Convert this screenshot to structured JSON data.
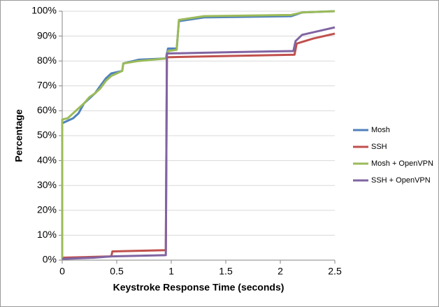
{
  "chart_data": {
    "type": "line",
    "x_label": "Keystroke Response Time (seconds)",
    "y_label": "Percentage",
    "xlim": [
      0,
      2.5
    ],
    "xticks": [
      0,
      0.5,
      1,
      1.5,
      2,
      2.5
    ],
    "ylim": [
      0,
      100
    ],
    "yticks": [
      {
        "value": 0,
        "label": "0%"
      },
      {
        "value": 10,
        "label": "10%"
      },
      {
        "value": 20,
        "label": "20%"
      },
      {
        "value": 30,
        "label": "30%"
      },
      {
        "value": 40,
        "label": "40%"
      },
      {
        "value": 50,
        "label": "50%"
      },
      {
        "value": 60,
        "label": "60%"
      },
      {
        "value": 70,
        "label": "70%"
      },
      {
        "value": 80,
        "label": "80%"
      },
      {
        "value": 90,
        "label": "90%"
      },
      {
        "value": 100,
        "label": "100%"
      }
    ],
    "grid": true,
    "legend": "right",
    "series": [
      {
        "name": "Mosh",
        "color": "#4f81bd",
        "x": [
          0,
          0,
          0.05,
          0.1,
          0.15,
          0.2,
          0.25,
          0.3,
          0.35,
          0.4,
          0.45,
          0.5,
          0.55,
          0.56,
          0.7,
          0.95,
          0.97,
          1.05,
          1.07,
          1.3,
          2.1,
          2.2,
          2.5
        ],
        "values": [
          0,
          55,
          56,
          57,
          59,
          63,
          65,
          67,
          70,
          73,
          75,
          75.5,
          76,
          79,
          80.5,
          81,
          85,
          85,
          96,
          97.5,
          98,
          99.5,
          100
        ]
      },
      {
        "name": "SSH",
        "color": "#c0504d",
        "x": [
          0,
          0.45,
          0.46,
          0.95,
          0.96,
          1.5,
          2.13,
          2.15,
          2.3,
          2.5
        ],
        "values": [
          1,
          1.5,
          3.5,
          4,
          81.5,
          82,
          82.5,
          87,
          89,
          91
        ]
      },
      {
        "name": "Mosh + OpenVPN",
        "color": "#9bbb59",
        "x": [
          0,
          0,
          0.05,
          0.1,
          0.15,
          0.2,
          0.25,
          0.3,
          0.35,
          0.4,
          0.45,
          0.5,
          0.55,
          0.56,
          0.7,
          0.95,
          0.97,
          1.05,
          1.07,
          1.3,
          2.1,
          2.2,
          2.5
        ],
        "values": [
          0,
          56.5,
          57,
          59,
          61,
          63,
          65.5,
          67,
          69,
          72,
          74,
          75,
          76,
          79,
          80,
          81,
          84,
          84.5,
          96.5,
          98,
          98.5,
          99.5,
          100
        ]
      },
      {
        "name": "SSH + OpenVPN",
        "color": "#8064a2",
        "x": [
          0,
          0.3,
          0.45,
          0.95,
          0.96,
          1.5,
          2.12,
          2.14,
          2.2,
          2.4,
          2.5
        ],
        "values": [
          0.5,
          1,
          1.5,
          2,
          83,
          83.5,
          84,
          88,
          90.5,
          92.5,
          93.5
        ]
      }
    ]
  }
}
